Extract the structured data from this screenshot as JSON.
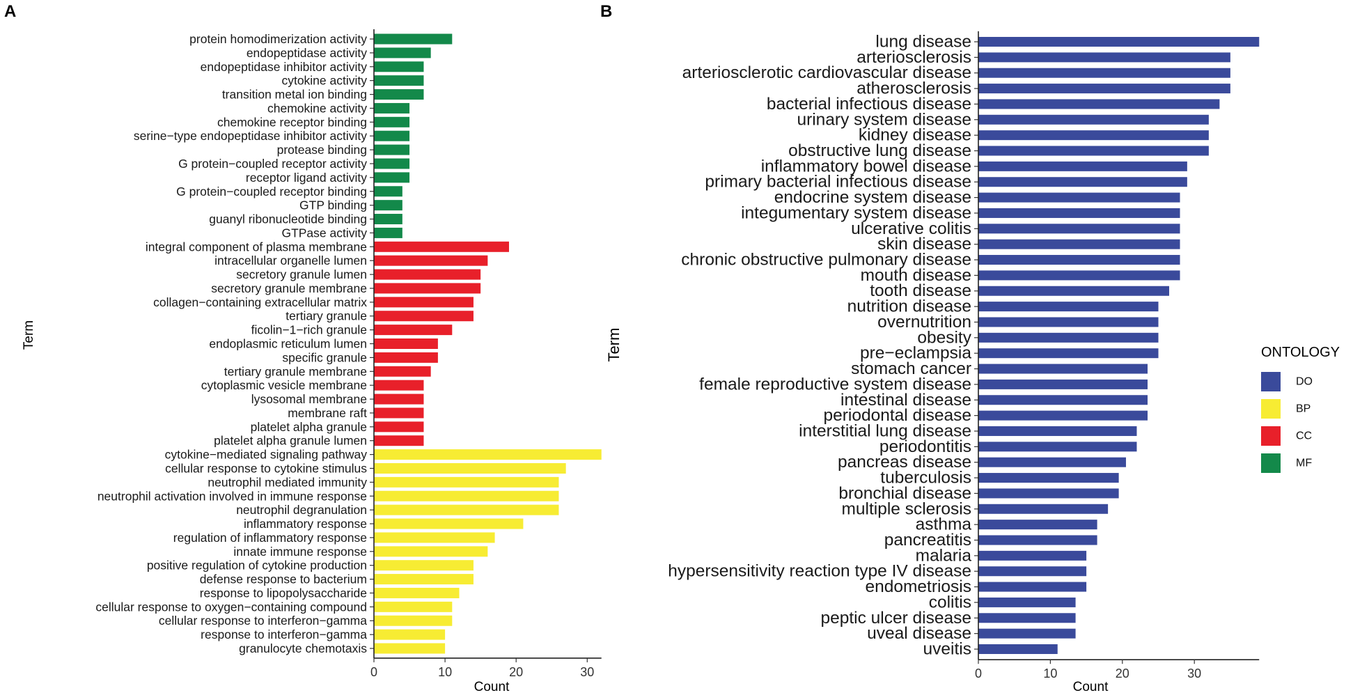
{
  "chart_data": [
    {
      "panel": "A",
      "type": "bar",
      "orientation": "horizontal",
      "xlabel": "Count",
      "ylabel": "Term",
      "xlim": [
        0,
        32
      ],
      "xticks": [
        0,
        10,
        20,
        30
      ],
      "colors": {
        "MF": "#13894a",
        "CC": "#e8202a",
        "BP": "#f7ec33"
      },
      "bars": [
        {
          "term": "protein homodimerization activity",
          "count": 11,
          "ontology": "MF"
        },
        {
          "term": "endopeptidase activity",
          "count": 8,
          "ontology": "MF"
        },
        {
          "term": "endopeptidase inhibitor activity",
          "count": 7,
          "ontology": "MF"
        },
        {
          "term": "cytokine activity",
          "count": 7,
          "ontology": "MF"
        },
        {
          "term": "transition metal ion binding",
          "count": 7,
          "ontology": "MF"
        },
        {
          "term": "chemokine activity",
          "count": 5,
          "ontology": "MF"
        },
        {
          "term": "chemokine receptor binding",
          "count": 5,
          "ontology": "MF"
        },
        {
          "term": "serine−type endopeptidase inhibitor activity",
          "count": 5,
          "ontology": "MF"
        },
        {
          "term": "protease binding",
          "count": 5,
          "ontology": "MF"
        },
        {
          "term": "G protein−coupled receptor activity",
          "count": 5,
          "ontology": "MF"
        },
        {
          "term": "receptor ligand activity",
          "count": 5,
          "ontology": "MF"
        },
        {
          "term": "G protein−coupled receptor binding",
          "count": 4,
          "ontology": "MF"
        },
        {
          "term": "GTP binding",
          "count": 4,
          "ontology": "MF"
        },
        {
          "term": "guanyl ribonucleotide binding",
          "count": 4,
          "ontology": "MF"
        },
        {
          "term": "GTPase activity",
          "count": 4,
          "ontology": "MF"
        },
        {
          "term": "integral component of plasma membrane",
          "count": 19,
          "ontology": "CC"
        },
        {
          "term": "intracellular organelle lumen",
          "count": 16,
          "ontology": "CC"
        },
        {
          "term": "secretory granule lumen",
          "count": 15,
          "ontology": "CC"
        },
        {
          "term": "secretory granule membrane",
          "count": 15,
          "ontology": "CC"
        },
        {
          "term": "collagen−containing extracellular matrix",
          "count": 14,
          "ontology": "CC"
        },
        {
          "term": "tertiary granule",
          "count": 14,
          "ontology": "CC"
        },
        {
          "term": "ficolin−1−rich granule",
          "count": 11,
          "ontology": "CC"
        },
        {
          "term": "endoplasmic reticulum lumen",
          "count": 9,
          "ontology": "CC"
        },
        {
          "term": "specific granule",
          "count": 9,
          "ontology": "CC"
        },
        {
          "term": "tertiary granule membrane",
          "count": 8,
          "ontology": "CC"
        },
        {
          "term": "cytoplasmic vesicle membrane",
          "count": 7,
          "ontology": "CC"
        },
        {
          "term": "lysosomal membrane",
          "count": 7,
          "ontology": "CC"
        },
        {
          "term": "membrane raft",
          "count": 7,
          "ontology": "CC"
        },
        {
          "term": "platelet alpha granule",
          "count": 7,
          "ontology": "CC"
        },
        {
          "term": "platelet alpha granule lumen",
          "count": 7,
          "ontology": "CC"
        },
        {
          "term": "cytokine−mediated signaling pathway",
          "count": 32,
          "ontology": "BP"
        },
        {
          "term": "cellular response to cytokine stimulus",
          "count": 27,
          "ontology": "BP"
        },
        {
          "term": "neutrophil mediated immunity",
          "count": 26,
          "ontology": "BP"
        },
        {
          "term": "neutrophil activation involved in immune response",
          "count": 26,
          "ontology": "BP"
        },
        {
          "term": "neutrophil degranulation",
          "count": 26,
          "ontology": "BP"
        },
        {
          "term": "inflammatory response",
          "count": 21,
          "ontology": "BP"
        },
        {
          "term": "regulation of inflammatory response",
          "count": 17,
          "ontology": "BP"
        },
        {
          "term": "innate immune response",
          "count": 16,
          "ontology": "BP"
        },
        {
          "term": "positive regulation of cytokine production",
          "count": 14,
          "ontology": "BP"
        },
        {
          "term": "defense response to bacterium",
          "count": 14,
          "ontology": "BP"
        },
        {
          "term": "response to lipopolysaccharide",
          "count": 12,
          "ontology": "BP"
        },
        {
          "term": "cellular response to oxygen−containing compound",
          "count": 11,
          "ontology": "BP"
        },
        {
          "term": "cellular response to interferon−gamma",
          "count": 11,
          "ontology": "BP"
        },
        {
          "term": "response to interferon−gamma",
          "count": 10,
          "ontology": "BP"
        },
        {
          "term": "granulocyte chemotaxis",
          "count": 10,
          "ontology": "BP"
        }
      ]
    },
    {
      "panel": "B",
      "type": "bar",
      "orientation": "horizontal",
      "xlabel": "Count",
      "ylabel": "Term",
      "xlim": [
        0,
        39
      ],
      "xticks": [
        0,
        10,
        20,
        30
      ],
      "colors": {
        "DO": "#3a4a9b"
      },
      "bars": [
        {
          "term": "lung disease",
          "count": 39,
          "ontology": "DO"
        },
        {
          "term": "arteriosclerosis",
          "count": 35,
          "ontology": "DO"
        },
        {
          "term": "arteriosclerotic cardiovascular disease",
          "count": 35,
          "ontology": "DO"
        },
        {
          "term": "atherosclerosis",
          "count": 35,
          "ontology": "DO"
        },
        {
          "term": "bacterial infectious disease",
          "count": 33.5,
          "ontology": "DO"
        },
        {
          "term": "urinary system disease",
          "count": 32,
          "ontology": "DO"
        },
        {
          "term": "kidney disease",
          "count": 32,
          "ontology": "DO"
        },
        {
          "term": "obstructive lung disease",
          "count": 32,
          "ontology": "DO"
        },
        {
          "term": "inflammatory bowel disease",
          "count": 29,
          "ontology": "DO"
        },
        {
          "term": "primary bacterial infectious disease",
          "count": 29,
          "ontology": "DO"
        },
        {
          "term": "endocrine system disease",
          "count": 28,
          "ontology": "DO"
        },
        {
          "term": "integumentary system disease",
          "count": 28,
          "ontology": "DO"
        },
        {
          "term": "ulcerative colitis",
          "count": 28,
          "ontology": "DO"
        },
        {
          "term": "skin disease",
          "count": 28,
          "ontology": "DO"
        },
        {
          "term": "chronic obstructive pulmonary disease",
          "count": 28,
          "ontology": "DO"
        },
        {
          "term": "mouth disease",
          "count": 28,
          "ontology": "DO"
        },
        {
          "term": "tooth disease",
          "count": 26.5,
          "ontology": "DO"
        },
        {
          "term": "nutrition disease",
          "count": 25,
          "ontology": "DO"
        },
        {
          "term": "overnutrition",
          "count": 25,
          "ontology": "DO"
        },
        {
          "term": "obesity",
          "count": 25,
          "ontology": "DO"
        },
        {
          "term": "pre−eclampsia",
          "count": 25,
          "ontology": "DO"
        },
        {
          "term": "stomach cancer",
          "count": 23.5,
          "ontology": "DO"
        },
        {
          "term": "female reproductive system disease",
          "count": 23.5,
          "ontology": "DO"
        },
        {
          "term": "intestinal disease",
          "count": 23.5,
          "ontology": "DO"
        },
        {
          "term": "periodontal disease",
          "count": 23.5,
          "ontology": "DO"
        },
        {
          "term": "interstitial lung disease",
          "count": 22,
          "ontology": "DO"
        },
        {
          "term": "periodontitis",
          "count": 22,
          "ontology": "DO"
        },
        {
          "term": "pancreas disease",
          "count": 20.5,
          "ontology": "DO"
        },
        {
          "term": "tuberculosis",
          "count": 19.5,
          "ontology": "DO"
        },
        {
          "term": "bronchial disease",
          "count": 19.5,
          "ontology": "DO"
        },
        {
          "term": "multiple sclerosis",
          "count": 18,
          "ontology": "DO"
        },
        {
          "term": "asthma",
          "count": 16.5,
          "ontology": "DO"
        },
        {
          "term": "pancreatitis",
          "count": 16.5,
          "ontology": "DO"
        },
        {
          "term": "malaria",
          "count": 15,
          "ontology": "DO"
        },
        {
          "term": "hypersensitivity reaction type IV disease",
          "count": 15,
          "ontology": "DO"
        },
        {
          "term": "endometriosis",
          "count": 15,
          "ontology": "DO"
        },
        {
          "term": "colitis",
          "count": 13.5,
          "ontology": "DO"
        },
        {
          "term": "peptic ulcer disease",
          "count": 13.5,
          "ontology": "DO"
        },
        {
          "term": "uveal disease",
          "count": 13.5,
          "ontology": "DO"
        },
        {
          "term": "uveitis",
          "count": 11,
          "ontology": "DO"
        }
      ]
    }
  ],
  "legend": {
    "title": "ONTOLOGY",
    "items": [
      {
        "label": "DO",
        "color": "#3a4a9b"
      },
      {
        "label": "BP",
        "color": "#f7ec33"
      },
      {
        "label": "CC",
        "color": "#e8202a"
      },
      {
        "label": "MF",
        "color": "#13894a"
      }
    ]
  }
}
